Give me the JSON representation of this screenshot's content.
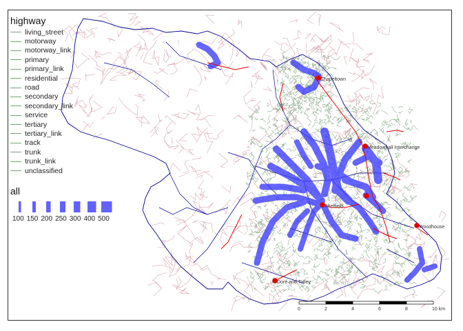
{
  "legend": {
    "title": "highway",
    "items": [
      "living_street",
      "motorway",
      "motorway_link",
      "primary",
      "primary_link",
      "residential",
      "road",
      "secondary",
      "secondary_link",
      "service",
      "tertiary",
      "tertiary_link",
      "track",
      "trunk",
      "trunk_link",
      "unclassified"
    ]
  },
  "size_legend": {
    "title": "all",
    "values": [
      "100",
      "150",
      "200",
      "250",
      "300",
      "400",
      "500"
    ]
  },
  "places": [
    {
      "name": "Chapeltown"
    },
    {
      "name": "Meadowhall Interchange"
    },
    {
      "name": "Sheffield"
    },
    {
      "name": "Woodhouse"
    },
    {
      "name": "Dore and Totley"
    }
  ],
  "scale_bar": {
    "labels": [
      "0",
      "2",
      "4",
      "6",
      "8",
      "10 km"
    ]
  },
  "colors": {
    "flow": "#3b3bff",
    "boundary": "#00008b",
    "minor_roads": "#c9a0a8",
    "residential": "#8fae8f",
    "major_roads": "#e00000",
    "points": "#e00000"
  }
}
